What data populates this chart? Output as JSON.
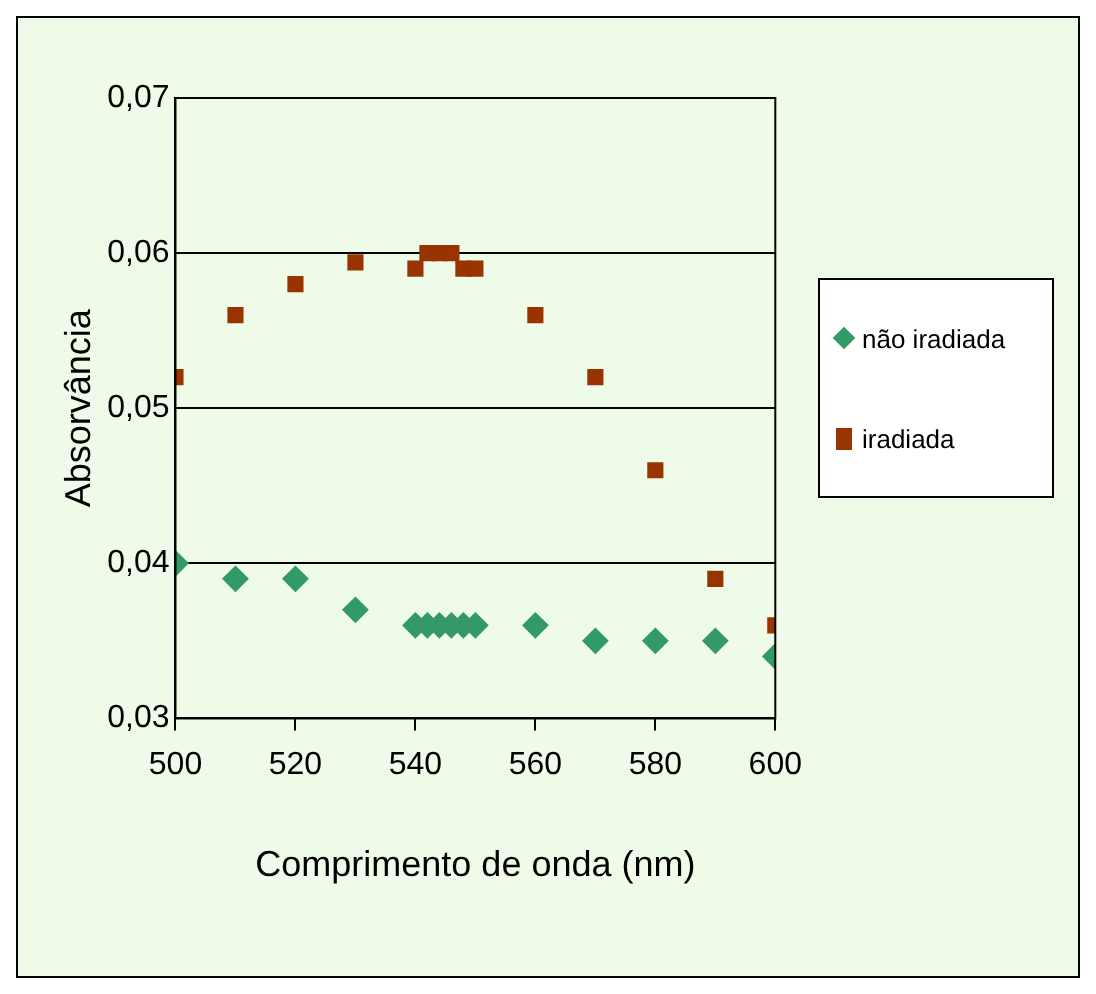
{
  "chart_data": {
    "type": "scatter",
    "xlabel": "Comprimento de onda (nm)",
    "ylabel": "Absorvância",
    "xlim": [
      500,
      600
    ],
    "xticks": [
      500,
      520,
      540,
      560,
      580,
      600
    ],
    "ylim": [
      0.03,
      0.07
    ],
    "yticks": [
      {
        "value": 0.03,
        "label": "0,03"
      },
      {
        "value": 0.04,
        "label": "0,04"
      },
      {
        "value": 0.05,
        "label": "0,05"
      },
      {
        "value": 0.06,
        "label": "0,06"
      },
      {
        "value": 0.07,
        "label": "0,07"
      }
    ],
    "grid": "y",
    "legend": "right",
    "series": [
      {
        "name": "não iradiada",
        "color": "#339966",
        "marker": "diamond",
        "x": [
          500,
          510,
          520,
          530,
          540,
          542,
          544,
          546,
          548,
          550,
          560,
          570,
          580,
          590,
          600
        ],
        "values": [
          0.04,
          0.039,
          0.039,
          0.037,
          0.036,
          0.036,
          0.036,
          0.036,
          0.036,
          0.036,
          0.036,
          0.035,
          0.035,
          0.035,
          0.034
        ]
      },
      {
        "name": "iradiada",
        "color": "#993300",
        "marker": "square",
        "x": [
          500,
          510,
          520,
          530,
          540,
          542,
          544,
          546,
          548,
          550,
          560,
          570,
          580,
          590,
          600
        ],
        "values": [
          0.052,
          0.056,
          0.058,
          0.0594,
          0.059,
          0.06,
          0.06,
          0.06,
          0.059,
          0.059,
          0.056,
          0.052,
          0.046,
          0.039,
          0.036
        ]
      }
    ]
  }
}
